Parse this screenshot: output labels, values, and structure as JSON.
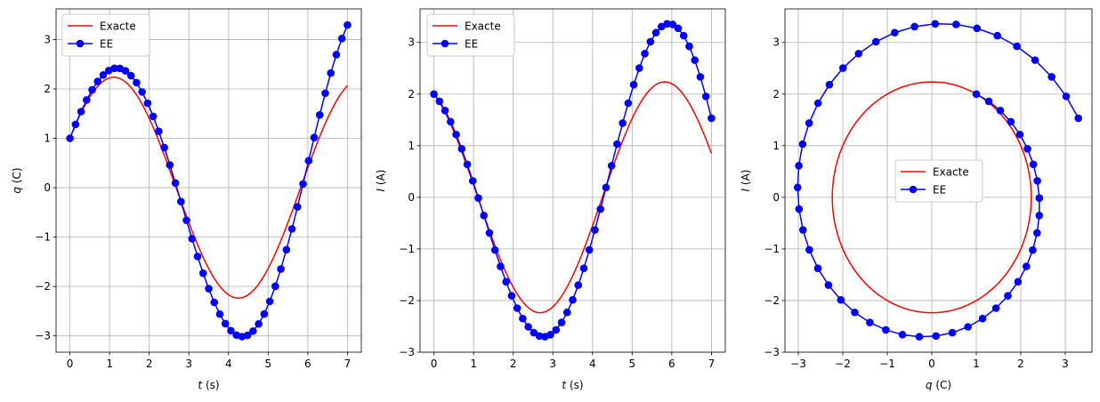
{
  "chart_data": [
    {
      "type": "line",
      "xlabel": "t (s)",
      "xlabel_var": "t",
      "xlabel_unit": " (s)",
      "ylabel": "q (C)",
      "ylabel_var": "q",
      "ylabel_unit": " (C)",
      "xlim": [
        -0.35,
        7.35
      ],
      "ylim": [
        -3.33,
        3.62
      ],
      "xticks": [
        0,
        1,
        2,
        3,
        4,
        5,
        6,
        7
      ],
      "yticks": [
        -3,
        -2,
        -1,
        0,
        1,
        2,
        3
      ],
      "grid": true,
      "legend_position": "top-left",
      "series": [
        {
          "name": "Exacte",
          "color": "#ff0000",
          "kind": "exact",
          "amplitude": 2.236,
          "x0": 1,
          "v0": 2,
          "t_max": 7
        },
        {
          "name": "EE",
          "color": "#0000ff",
          "kind": "euler",
          "dt": 0.14,
          "steps": 50,
          "x0": 1,
          "v0": 2
        }
      ]
    },
    {
      "type": "line",
      "xlabel": "t (s)",
      "xlabel_var": "t",
      "xlabel_unit": " (s)",
      "ylabel": "I (A)",
      "ylabel_var": "I",
      "ylabel_unit": " (A)",
      "xlim": [
        -0.35,
        7.35
      ],
      "ylim": [
        -3.0,
        3.65
      ],
      "xticks": [
        0,
        1,
        2,
        3,
        4,
        5,
        6,
        7
      ],
      "yticks": [
        -3,
        -2,
        -1,
        0,
        1,
        2,
        3
      ],
      "grid": true,
      "legend_position": "top-left",
      "series": [
        {
          "name": "Exacte",
          "color": "#ff0000",
          "kind": "exact",
          "amplitude": 2.236,
          "x0": 1,
          "v0": 2,
          "t_max": 7
        },
        {
          "name": "EE",
          "color": "#0000ff",
          "kind": "euler",
          "dt": 0.14,
          "steps": 50,
          "x0": 1,
          "v0": 2
        }
      ]
    },
    {
      "type": "line",
      "xlabel": "q (C)",
      "xlabel_var": "q",
      "xlabel_unit": " (C)",
      "ylabel": "I (A)",
      "ylabel_var": "I",
      "ylabel_unit": " (A)",
      "xlim": [
        -3.3,
        3.6
      ],
      "ylim": [
        -3.0,
        3.65
      ],
      "xticks": [
        -3,
        -2,
        -1,
        0,
        1,
        2,
        3
      ],
      "yticks": [
        -3,
        -2,
        -1,
        0,
        1,
        2,
        3
      ],
      "grid": true,
      "legend_position": "center",
      "series": [
        {
          "name": "Exacte",
          "color": "#ff0000",
          "kind": "exact",
          "amplitude": 2.236,
          "x0": 1,
          "v0": 2,
          "t_max": 7
        },
        {
          "name": "EE",
          "color": "#0000ff",
          "kind": "euler",
          "dt": 0.14,
          "steps": 50,
          "x0": 1,
          "v0": 2
        }
      ]
    }
  ]
}
